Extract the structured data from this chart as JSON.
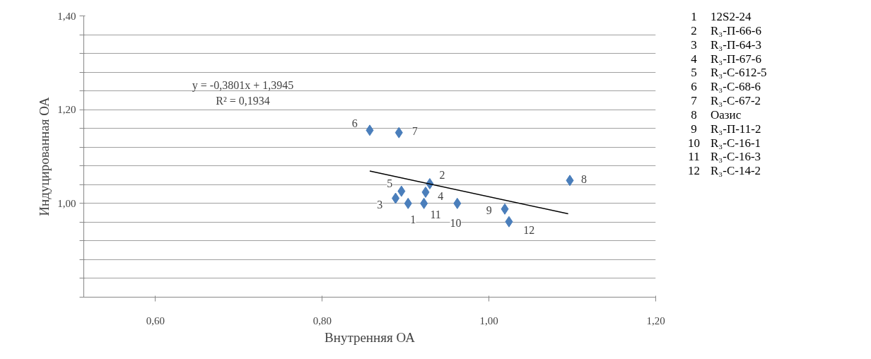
{
  "chart_data": {
    "type": "scatter",
    "xlabel": "Внутренняя ОА",
    "ylabel": "Индуцированная ОА",
    "grid": "y",
    "xlim": [
      0.514,
      1.2
    ],
    "xticks": [
      {
        "value": 0.6,
        "label": "0,60"
      },
      {
        "value": 0.8,
        "label": "0,80"
      },
      {
        "value": 1.0,
        "label": "1,00"
      },
      {
        "value": 1.2,
        "label": "1,20"
      }
    ],
    "ylim": [
      0.8,
      1.4
    ],
    "yticks": [
      {
        "value": 0.8,
        "label": null
      },
      {
        "value": 0.84,
        "label": null
      },
      {
        "value": 0.88,
        "label": null
      },
      {
        "value": 0.92,
        "label": null
      },
      {
        "value": 0.96,
        "label": null
      },
      {
        "value": 1.0,
        "label": "1,00"
      },
      {
        "value": 1.04,
        "label": null
      },
      {
        "value": 1.08,
        "label": null
      },
      {
        "value": 1.12,
        "label": null
      },
      {
        "value": 1.16,
        "label": null
      },
      {
        "value": 1.2,
        "label": "1,20"
      },
      {
        "value": 1.24,
        "label": null
      },
      {
        "value": 1.28,
        "label": null
      },
      {
        "value": 1.32,
        "label": null
      },
      {
        "value": 1.36,
        "label": null
      },
      {
        "value": 1.4,
        "label": "1,40"
      }
    ],
    "series": [
      {
        "marker": "diamond",
        "color": "#4a7ebb",
        "x": [
          0.903,
          0.929,
          0.888,
          0.924,
          0.895,
          0.857,
          0.892,
          1.097,
          1.019,
          0.962,
          0.922,
          1.024
        ],
        "values": [
          1.0,
          1.042,
          1.011,
          1.024,
          1.026,
          1.156,
          1.151,
          1.049,
          0.988,
          1.0,
          1.0,
          0.961
        ]
      },
      {
        "type": "line",
        "color": "#000000",
        "x": [
          0.857,
          1.095
        ],
        "values": [
          1.069,
          0.978
        ]
      }
    ],
    "annotations": [
      {
        "text": "1",
        "x": 0.909,
        "y": 0.966
      },
      {
        "text": "2",
        "x": 0.944,
        "y": 1.061
      },
      {
        "text": "3",
        "x": 0.869,
        "y": 0.998
      },
      {
        "text": "4",
        "x": 0.942,
        "y": 1.016
      },
      {
        "text": "5",
        "x": 0.881,
        "y": 1.042
      },
      {
        "text": "6",
        "x": 0.839,
        "y": 1.171
      },
      {
        "text": "7",
        "x": 0.911,
        "y": 1.154
      },
      {
        "text": "8",
        "x": 1.114,
        "y": 1.052
      },
      {
        "text": "9",
        "x": 1.0,
        "y": 0.985
      },
      {
        "text": "10",
        "x": 0.96,
        "y": 0.959
      },
      {
        "text": "11",
        "x": 0.936,
        "y": 0.976
      },
      {
        "text": "12",
        "x": 1.048,
        "y": 0.943
      },
      "y = -0,3801x + 1,3945",
      "R² = 0,1934",
      "1 12S2-24",
      "2 R₃-П-66-6",
      "3 R₃-П-64-3",
      "4 R₃-П-67-6",
      "5 R₃-С-612-5",
      "6 R₃-С-68-6",
      "7 R₃-С-67-2",
      "8 Оазис",
      "9 R₃-П-11-2",
      "10 R₃-С-16-1",
      "11 R₃-С-16-3",
      "12 R₃-С-14-2"
    ]
  }
}
